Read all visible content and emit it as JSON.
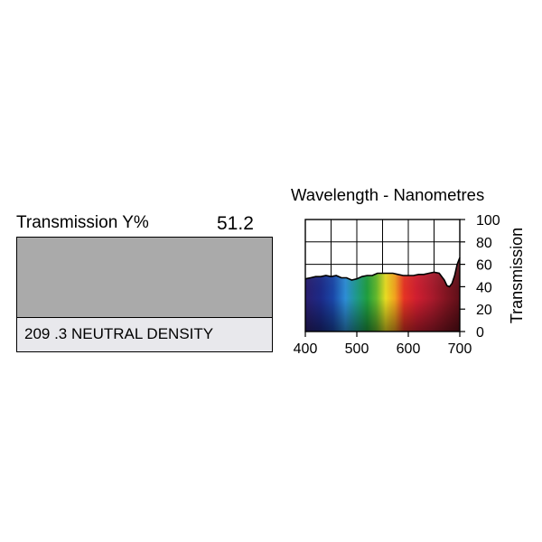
{
  "swatch": {
    "transmission_label": "Transmission Y%",
    "transmission_value": "51.2",
    "filter_name": "209 .3 NEUTRAL DENSITY",
    "swatch_color": "#aaaaaa",
    "name_background": "#e8e8ec"
  },
  "chart_data": {
    "type": "area",
    "title": "Wavelength - Nanometres",
    "xlabel": "",
    "ylabel": "Transmission",
    "xlim": [
      400,
      700
    ],
    "ylim": [
      0,
      100
    ],
    "x_ticks": [
      "400",
      "500",
      "600",
      "700"
    ],
    "y_ticks": [
      "0",
      "20",
      "40",
      "60",
      "80",
      "100"
    ],
    "grid": true,
    "fill": "visible spectrum gradient",
    "x": [
      400,
      410,
      420,
      430,
      440,
      450,
      460,
      470,
      480,
      490,
      500,
      510,
      520,
      530,
      540,
      550,
      560,
      570,
      580,
      590,
      600,
      610,
      620,
      630,
      640,
      650,
      660,
      670,
      675,
      680,
      685,
      690,
      695,
      700
    ],
    "y": [
      47,
      48,
      49,
      49,
      50,
      49,
      50,
      48,
      48,
      46,
      47,
      49,
      50,
      50,
      52,
      52,
      52,
      52,
      51,
      50,
      50,
      50,
      51,
      51,
      52,
      53,
      52,
      46,
      41,
      40,
      43,
      50,
      60,
      66
    ]
  }
}
